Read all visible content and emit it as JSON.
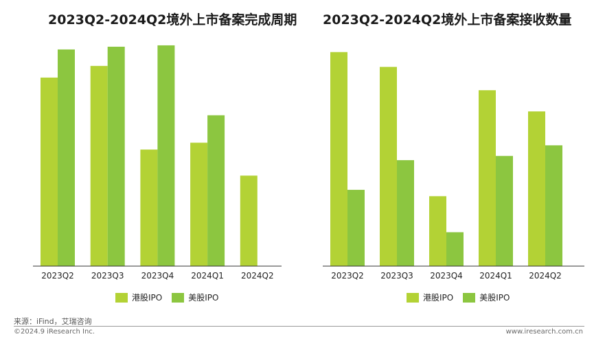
{
  "colors": {
    "hk": "#b3d235",
    "us": "#8cc640",
    "axis": "#333333"
  },
  "legend": {
    "hk": "港股IPO",
    "us": "美股IPO"
  },
  "chart_data": [
    {
      "type": "bar",
      "title": "2023Q2-2024Q2境外上市备案完成周期",
      "categories": [
        "2023Q2",
        "2023Q3",
        "2023Q4",
        "2024Q1",
        "2024Q2"
      ],
      "series": [
        {
          "name": "港股IPO",
          "values": [
            275,
            292,
            170,
            180,
            132
          ]
        },
        {
          "name": "美股IPO",
          "values": [
            316,
            320,
            322,
            220,
            null
          ]
        }
      ],
      "ylim": [
        0,
        340
      ],
      "grid": false,
      "legend_position": "bottom"
    },
    {
      "type": "bar",
      "title": "2023Q2-2024Q2境外上市备案接收数量",
      "categories": [
        "2023Q2",
        "2023Q3",
        "2023Q4",
        "2024Q1",
        "2024Q2"
      ],
      "series": [
        {
          "name": "港股IPO",
          "values": [
            101,
            94,
            33,
            83,
            73
          ]
        },
        {
          "name": "美股IPO",
          "values": [
            36,
            50,
            16,
            52,
            57
          ]
        }
      ],
      "ylim": [
        0,
        110
      ],
      "grid": false,
      "legend_position": "bottom"
    }
  ],
  "footer": {
    "source": "来源：iFind，艾瑞咨询",
    "copyright": "©2024.9 iResearch Inc.",
    "url": "www.iresearch.com.cn"
  }
}
